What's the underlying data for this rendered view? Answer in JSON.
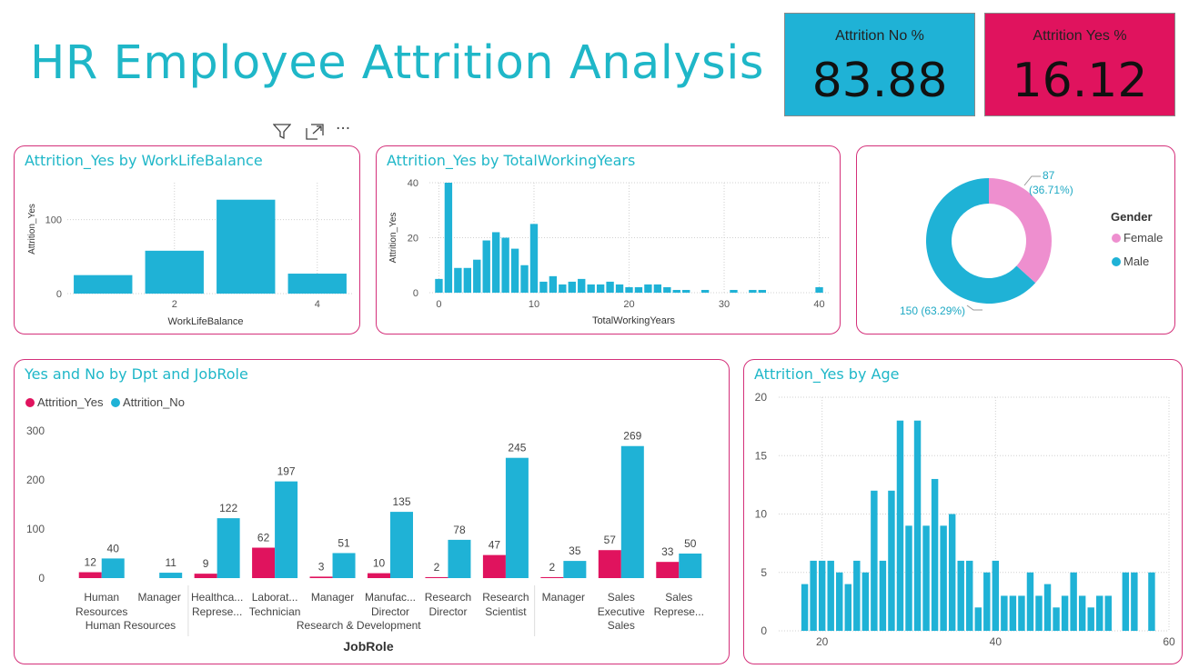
{
  "dashboard": {
    "title": "HR Employee Attrition Analysis",
    "kpis": [
      {
        "label": "Attrition No %",
        "value": "83.88",
        "color": "#1fb2d6"
      },
      {
        "label": "Attrition Yes %",
        "value": "16.12",
        "color": "#e0135e"
      }
    ],
    "toolbar": {
      "filter_icon": "filter-icon",
      "focus_icon": "focus-mode-icon",
      "more_icon": "more-options-icon",
      "more_glyph": "···"
    },
    "colors": {
      "accent": "#1fb7c8",
      "bar": "#1fb2d6",
      "yes": "#e0135e",
      "female": "#ee8fcf",
      "border": "#d4307a"
    }
  },
  "chart_data": [
    {
      "type": "bar",
      "title": "Attrition_Yes by WorkLifeBalance",
      "xlabel": "WorkLifeBalance",
      "ylabel": "Attrition_Yes",
      "x": [
        1,
        2,
        3,
        4
      ],
      "values": [
        25,
        58,
        127,
        27
      ],
      "xticks": [
        "2",
        "4"
      ],
      "yticks": [
        "0",
        "100"
      ],
      "ylim": [
        0,
        150
      ],
      "grid": true
    },
    {
      "type": "bar",
      "title": "Attrition_Yes by TotalWorkingYears",
      "xlabel": "TotalWorkingYears",
      "ylabel": "Attrition_Yes",
      "x": [
        0,
        1,
        2,
        3,
        4,
        5,
        6,
        7,
        8,
        9,
        10,
        11,
        12,
        13,
        14,
        15,
        16,
        17,
        18,
        19,
        20,
        21,
        22,
        23,
        24,
        25,
        26,
        28,
        31,
        33,
        34,
        40
      ],
      "values": [
        5,
        40,
        9,
        9,
        12,
        19,
        22,
        20,
        16,
        10,
        25,
        4,
        6,
        3,
        4,
        5,
        3,
        3,
        4,
        3,
        2,
        2,
        3,
        3,
        2,
        1,
        1,
        1,
        1,
        1,
        1,
        2
      ],
      "xticks": [
        "0",
        "10",
        "20",
        "30",
        "40"
      ],
      "yticks": [
        "0",
        "20",
        "40"
      ],
      "xlim": [
        -1,
        41
      ],
      "ylim": [
        0,
        40
      ],
      "grid": true
    },
    {
      "type": "pie",
      "title": "",
      "legend_title": "Gender",
      "labels": [
        "Female",
        "Male"
      ],
      "values": [
        87,
        150
      ],
      "data_labels": [
        "87\n(36.71%)",
        "150 (63.29%)"
      ],
      "legend_position": "right"
    },
    {
      "type": "bar",
      "title": "Yes and No by Dpt and JobRole",
      "xlabel": "JobRole",
      "legend_position": "top-left",
      "ylim": [
        0,
        300
      ],
      "yticks": [
        "0",
        "100",
        "200",
        "300"
      ],
      "categories": [
        "Human Resources",
        "Manager",
        "Healthca... Represe...",
        "Laborat... Technician",
        "Manager",
        "Manufac... Director",
        "Research Director",
        "Research Scientist",
        "Manager",
        "Sales Executive",
        "Sales Represe..."
      ],
      "category_labels": [
        [
          "Human",
          "Resources"
        ],
        [
          "Manager"
        ],
        [
          "Healthca...",
          "Represe..."
        ],
        [
          "Laborat...",
          "Technician"
        ],
        [
          "Manager"
        ],
        [
          "Manufac...",
          "Director"
        ],
        [
          "Research",
          "Director"
        ],
        [
          "Research",
          "Scientist"
        ],
        [
          "Manager"
        ],
        [
          "Sales",
          "Executive"
        ],
        [
          "Sales",
          "Represe..."
        ]
      ],
      "groups": [
        {
          "name": "Human Resources",
          "count": 2
        },
        {
          "name": "Research & Development",
          "count": 6
        },
        {
          "name": "Sales",
          "count": 3
        }
      ],
      "series": [
        {
          "name": "Attrition_Yes",
          "values": [
            12,
            null,
            9,
            62,
            3,
            10,
            2,
            47,
            2,
            57,
            33
          ],
          "labels": [
            "12",
            "",
            "9",
            "62",
            "3",
            "10",
            "2",
            "47",
            "2",
            "57",
            "33"
          ]
        },
        {
          "name": "Attrition_No",
          "values": [
            40,
            11,
            122,
            197,
            51,
            135,
            78,
            245,
            35,
            269,
            50
          ],
          "labels": [
            "40",
            "11",
            "122",
            "197",
            "51",
            "135",
            "78",
            "245",
            "35",
            "269",
            "50"
          ]
        }
      ]
    },
    {
      "type": "bar",
      "title": "Attrition_Yes by Age",
      "x": [
        18,
        19,
        20,
        21,
        22,
        23,
        24,
        25,
        26,
        27,
        28,
        29,
        30,
        31,
        32,
        33,
        34,
        35,
        36,
        37,
        38,
        39,
        40,
        41,
        42,
        43,
        44,
        45,
        46,
        47,
        48,
        49,
        50,
        51,
        52,
        53,
        54,
        55,
        56,
        57,
        58
      ],
      "values": [
        4,
        6,
        6,
        6,
        5,
        4,
        6,
        5,
        12,
        6,
        12,
        18,
        9,
        18,
        9,
        13,
        9,
        10,
        6,
        6,
        2,
        5,
        6,
        3,
        3,
        3,
        5,
        3,
        4,
        2,
        3,
        5,
        3,
        2,
        3,
        3,
        0,
        5,
        5,
        0,
        5
      ],
      "xticks": [
        "20",
        "40",
        "60"
      ],
      "yticks": [
        "0",
        "5",
        "10",
        "15",
        "20"
      ],
      "xlim": [
        15,
        60
      ],
      "ylim": [
        0,
        20
      ],
      "grid": true
    }
  ]
}
